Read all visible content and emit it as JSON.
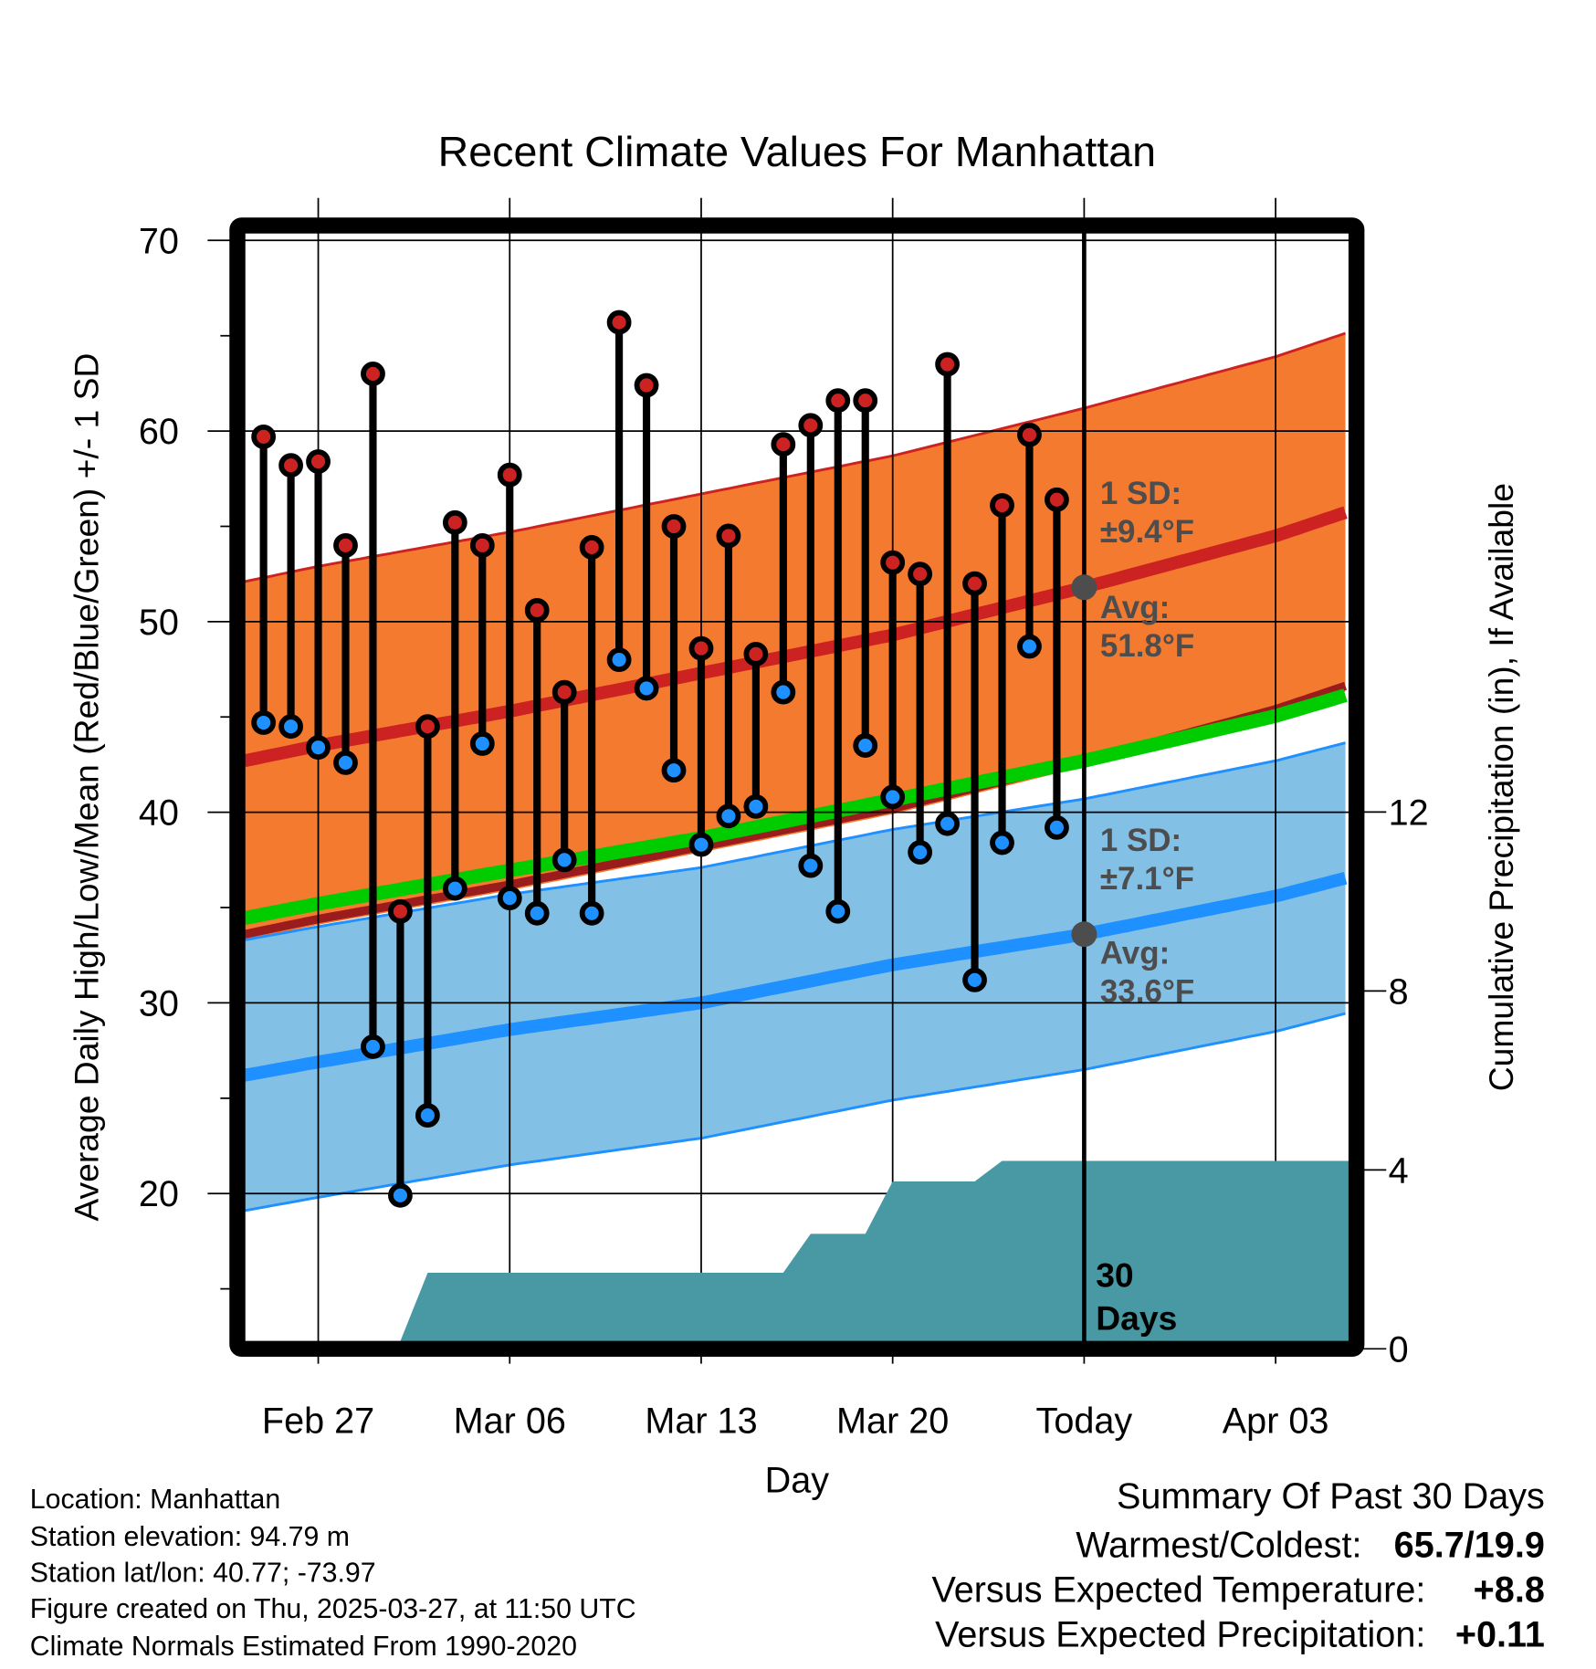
{
  "chart_data": {
    "type": "line",
    "title": "Recent Climate Values For Manhattan",
    "xlabel": "Day",
    "ylabel": "Average Daily High/Low/Mean (Red/Blue/Green) +/- 1 SD",
    "ylabel_right": "Cumulative Precipitation (in), If Available",
    "ylim": [
      12.5,
      70.5
    ],
    "ylim_right": [
      0,
      14
    ],
    "y_ticks": [
      "70",
      "60",
      "50",
      "40",
      "30",
      "20"
    ],
    "y_ticks_right": [
      "12",
      "8",
      "4",
      "0"
    ],
    "x_ticks": [
      {
        "label": "Feb 27",
        "day": 0
      },
      {
        "label": "Mar 06",
        "day": 7
      },
      {
        "label": "Mar 13",
        "day": 14
      },
      {
        "label": "Mar 20",
        "day": 21
      },
      {
        "label": "Today",
        "day": 28
      },
      {
        "label": "Apr 03",
        "day": 35
      }
    ],
    "x_range_days_from_feb27": [
      -2.7,
      37.7
    ],
    "observations": {
      "dates": [
        "Feb 25",
        "Feb 26",
        "Feb 27",
        "Feb 28",
        "Mar 01",
        "Mar 02",
        "Mar 03",
        "Mar 04",
        "Mar 05",
        "Mar 06",
        "Mar 07",
        "Mar 08",
        "Mar 09",
        "Mar 10",
        "Mar 11",
        "Mar 12",
        "Mar 13",
        "Mar 14",
        "Mar 15",
        "Mar 16",
        "Mar 17",
        "Mar 18",
        "Mar 19",
        "Mar 20",
        "Mar 21",
        "Mar 22",
        "Mar 23",
        "Mar 24",
        "Mar 25",
        "Mar 26"
      ],
      "day_offset_first": -2,
      "highs": [
        59.7,
        58.2,
        58.4,
        54.0,
        63.0,
        34.8,
        44.5,
        55.2,
        54.0,
        57.7,
        50.6,
        46.3,
        53.9,
        65.7,
        62.4,
        55.0,
        48.6,
        54.5,
        48.3,
        59.3,
        60.3,
        61.6,
        61.6,
        53.1,
        52.5,
        63.5,
        52.0,
        56.1,
        59.8,
        56.4
      ],
      "lows": [
        44.7,
        44.5,
        43.4,
        42.6,
        27.7,
        19.9,
        24.1,
        36.0,
        43.6,
        35.5,
        34.7,
        37.5,
        34.7,
        48.0,
        46.5,
        42.2,
        38.3,
        39.8,
        40.3,
        46.3,
        37.2,
        34.8,
        43.5,
        40.8,
        37.9,
        39.4,
        31.2,
        38.4,
        48.7,
        39.2
      ]
    },
    "normals": {
      "x_days_from_feb27": [
        -2.7,
        0,
        7,
        14,
        21,
        28,
        35,
        37.7
      ],
      "high_mean": [
        42.7,
        43.5,
        45.3,
        47.3,
        49.3,
        51.8,
        54.5,
        55.8
      ],
      "low_mean": [
        26.2,
        26.9,
        28.6,
        30.0,
        32.0,
        33.6,
        35.6,
        36.6
      ],
      "high_sd": 9.4,
      "low_sd": 7.1
    },
    "precip_cumulative": {
      "x_days_from_feb27": [
        -2.7,
        3,
        4,
        17,
        18,
        20,
        21,
        24,
        25,
        37.7
      ],
      "values": [
        0,
        0,
        1.7,
        1.7,
        2.57,
        2.57,
        3.74,
        3.74,
        4.2,
        4.2
      ]
    },
    "annotations": {
      "high_sd": "1 SD:",
      "high_sd_val": "±9.4°F",
      "high_avg": "Avg:",
      "high_avg_val": "51.8°F",
      "low_sd": "1 SD:",
      "low_sd_val": "±7.1°F",
      "low_avg": "Avg:",
      "low_avg_val": "33.6°F",
      "days_num": "30",
      "days_word": "Days"
    },
    "colors": {
      "high": "#cc2222",
      "low": "#1e90ff",
      "mean": "#00cc00",
      "high_band": "#f47a2f",
      "low_band": "#82c0e6",
      "precip": "#4899a3",
      "today_marker": "#4d4d4d"
    }
  },
  "footer": {
    "location": "Location: Manhattan",
    "elevation": "Station elevation: 94.79 m",
    "latlon": "Station lat/lon: 40.77; -73.97",
    "created": "Figure created on Thu, 2025-03-27, at 11:50 UTC",
    "normals": "Climate Normals Estimated From 1990-2020"
  },
  "summary": {
    "title": "Summary Of Past 30 Days",
    "warm_cold_label": "Warmest/Coldest:",
    "warm_cold_value": "65.7/19.9",
    "temp_label": "Versus Expected Temperature:",
    "temp_value": "+8.8",
    "precip_label": "Versus Expected Precipitation:",
    "precip_value": "+0.11"
  }
}
